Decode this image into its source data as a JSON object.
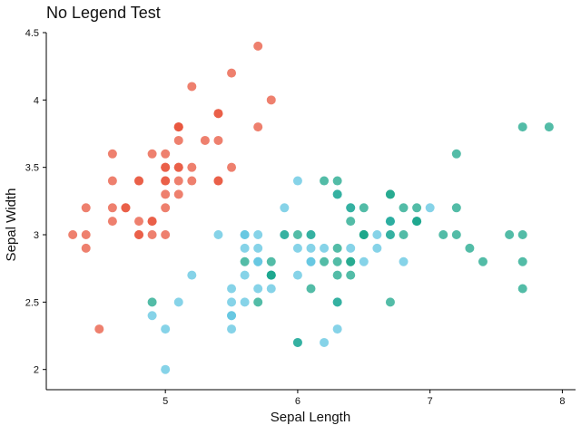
{
  "chart_data": {
    "type": "scatter",
    "title": "No Legend Test",
    "xlabel": "Sepal Length",
    "ylabel": "Sepal Width",
    "xlim": [
      4.1,
      8.1
    ],
    "ylim": [
      1.85,
      4.5
    ],
    "x_ticks": [
      5,
      6,
      7,
      8
    ],
    "y_ticks": [
      2,
      2.5,
      3,
      3.5,
      4,
      4.5
    ],
    "grid": false,
    "legend": "none",
    "colors": {
      "setosa": "#e8553e",
      "versicolor": "#5ec4e0",
      "virginica": "#1aa68a"
    },
    "series": [
      {
        "key": "setosa",
        "x": [
          5.1,
          4.9,
          4.7,
          4.6,
          5.0,
          5.4,
          4.6,
          5.0,
          4.4,
          4.9,
          5.4,
          4.8,
          4.8,
          4.3,
          5.8,
          5.7,
          5.4,
          5.1,
          5.7,
          5.1,
          5.4,
          5.1,
          4.6,
          5.1,
          4.8,
          5.0,
          5.0,
          5.2,
          5.2,
          4.7,
          4.8,
          5.4,
          5.2,
          5.5,
          4.9,
          5.0,
          5.5,
          4.9,
          4.4,
          5.1,
          5.0,
          4.5,
          4.4,
          5.0,
          5.1,
          4.8,
          5.1,
          4.6,
          5.3,
          5.0
        ],
        "y": [
          3.5,
          3.0,
          3.2,
          3.1,
          3.6,
          3.9,
          3.4,
          3.4,
          2.9,
          3.1,
          3.7,
          3.4,
          3.0,
          3.0,
          4.0,
          4.4,
          3.9,
          3.5,
          3.8,
          3.8,
          3.4,
          3.7,
          3.6,
          3.3,
          3.4,
          3.0,
          3.4,
          3.5,
          3.4,
          3.2,
          3.1,
          3.4,
          4.1,
          4.2,
          3.1,
          3.2,
          3.5,
          3.6,
          3.0,
          3.4,
          3.5,
          2.3,
          3.2,
          3.5,
          3.8,
          3.0,
          3.8,
          3.2,
          3.7,
          3.3
        ]
      },
      {
        "key": "versicolor",
        "x": [
          7.0,
          6.4,
          6.9,
          5.5,
          6.5,
          5.7,
          6.3,
          4.9,
          6.6,
          5.2,
          5.0,
          5.9,
          6.0,
          6.1,
          5.6,
          6.7,
          5.6,
          5.8,
          6.2,
          5.6,
          5.9,
          6.1,
          6.3,
          6.1,
          6.4,
          6.6,
          6.8,
          6.7,
          6.0,
          5.7,
          5.5,
          5.5,
          5.8,
          6.0,
          5.4,
          6.0,
          6.7,
          6.3,
          5.6,
          5.5,
          5.5,
          6.1,
          5.8,
          5.0,
          5.6,
          5.7,
          5.7,
          6.2,
          5.1,
          5.7
        ],
        "y": [
          3.2,
          3.2,
          3.1,
          2.3,
          2.8,
          2.8,
          3.3,
          2.4,
          2.9,
          2.7,
          2.0,
          3.0,
          2.2,
          2.9,
          2.9,
          3.1,
          3.0,
          2.7,
          2.2,
          2.5,
          3.2,
          2.8,
          2.5,
          2.8,
          2.9,
          3.0,
          2.8,
          3.0,
          2.9,
          2.6,
          2.4,
          2.4,
          2.7,
          2.7,
          3.0,
          3.4,
          3.1,
          2.3,
          3.0,
          2.5,
          2.6,
          3.0,
          2.6,
          2.3,
          2.7,
          3.0,
          2.9,
          2.9,
          2.5,
          2.8
        ]
      },
      {
        "key": "virginica",
        "x": [
          6.3,
          5.8,
          7.1,
          6.3,
          6.5,
          7.6,
          4.9,
          7.3,
          6.7,
          7.2,
          6.5,
          6.4,
          6.8,
          5.7,
          5.8,
          6.4,
          6.5,
          7.7,
          7.7,
          6.0,
          6.9,
          5.6,
          7.7,
          6.3,
          6.7,
          7.2,
          6.2,
          6.1,
          6.4,
          7.2,
          7.4,
          7.9,
          6.4,
          6.3,
          6.1,
          7.7,
          6.3,
          6.4,
          6.0,
          6.9,
          6.7,
          6.9,
          5.8,
          6.8,
          6.7,
          6.7,
          6.3,
          6.5,
          6.2,
          5.9
        ],
        "y": [
          3.3,
          2.7,
          3.0,
          2.9,
          3.0,
          3.0,
          2.5,
          2.9,
          2.5,
          3.6,
          3.2,
          2.7,
          3.0,
          2.5,
          2.8,
          3.2,
          3.0,
          3.8,
          2.6,
          2.2,
          3.2,
          2.8,
          2.8,
          2.7,
          3.3,
          3.2,
          2.8,
          3.0,
          2.8,
          3.0,
          2.8,
          3.8,
          2.8,
          2.8,
          2.6,
          3.0,
          3.4,
          3.1,
          3.0,
          3.1,
          3.1,
          3.1,
          2.7,
          3.2,
          3.3,
          3.0,
          2.5,
          3.0,
          3.4,
          3.0
        ]
      }
    ]
  }
}
